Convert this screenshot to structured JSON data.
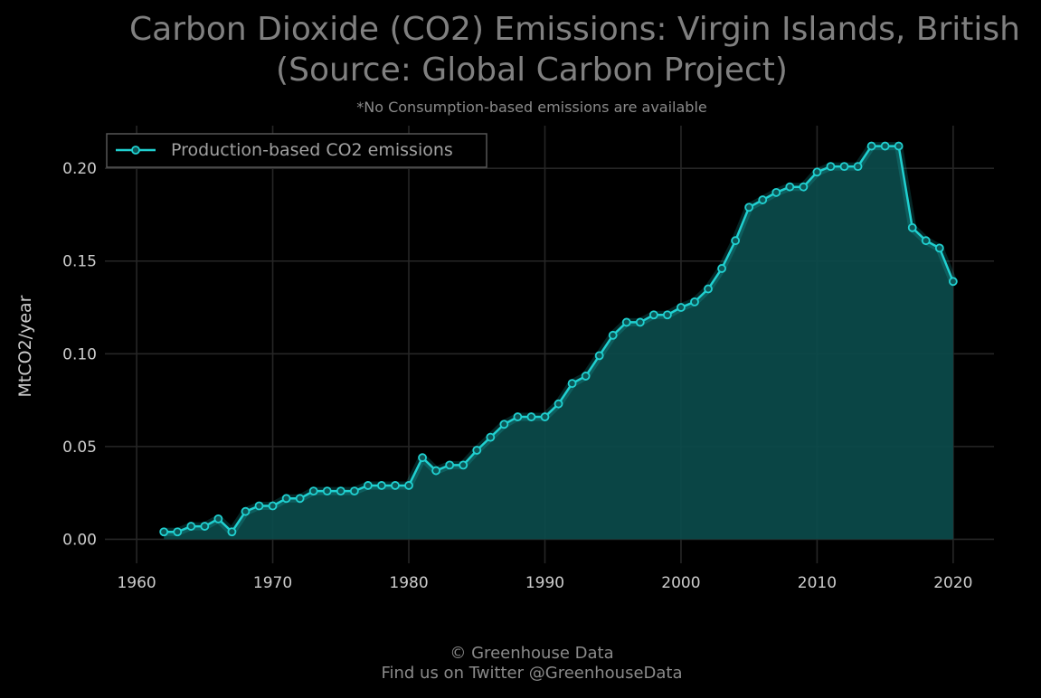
{
  "title_line1": "Carbon Dioxide (CO2) Emissions: Virgin Islands, British",
  "title_line2": "(Source: Global Carbon Project)",
  "subtitle": "*No Consumption-based emissions are available",
  "footer_line1": "© Greenhouse Data",
  "footer_line2": "Find us on Twitter @GreenhouseData",
  "colors": {
    "background": "#000000",
    "line": "#20d0d0",
    "fill": "#0b4d4d",
    "grid": "#262626",
    "text": "#cccccc"
  },
  "chart_data": {
    "type": "area",
    "ylabel": "MtCO2/year",
    "xlabel": "",
    "xlim": [
      1958,
      2023
    ],
    "ylim": [
      -0.011,
      0.223
    ],
    "xticks": [
      1960,
      1970,
      1980,
      1990,
      2000,
      2010,
      2020
    ],
    "xtick_labels": [
      "1960",
      "1970",
      "1980",
      "1990",
      "2000",
      "2010",
      "2020"
    ],
    "yticks": [
      0.0,
      0.05,
      0.1,
      0.15,
      0.2
    ],
    "ytick_labels": [
      "0.00",
      "0.05",
      "0.10",
      "0.15",
      "0.20"
    ],
    "grid": true,
    "legend": {
      "position": "top-left"
    },
    "series": [
      {
        "name": "Production-based CO2 emissions",
        "x": [
          1962,
          1963,
          1964,
          1965,
          1966,
          1967,
          1968,
          1969,
          1970,
          1971,
          1972,
          1973,
          1974,
          1975,
          1976,
          1977,
          1978,
          1979,
          1980,
          1981,
          1982,
          1983,
          1984,
          1985,
          1986,
          1987,
          1988,
          1989,
          1990,
          1991,
          1992,
          1993,
          1994,
          1995,
          1996,
          1997,
          1998,
          1999,
          2000,
          2001,
          2002,
          2003,
          2004,
          2005,
          2006,
          2007,
          2008,
          2009,
          2010,
          2011,
          2012,
          2013,
          2014,
          2015,
          2016,
          2017,
          2018,
          2019,
          2020
        ],
        "y": [
          0.004,
          0.004,
          0.007,
          0.007,
          0.011,
          0.004,
          0.015,
          0.018,
          0.018,
          0.022,
          0.022,
          0.026,
          0.026,
          0.026,
          0.026,
          0.029,
          0.029,
          0.029,
          0.029,
          0.044,
          0.037,
          0.04,
          0.04,
          0.048,
          0.055,
          0.062,
          0.066,
          0.066,
          0.066,
          0.073,
          0.084,
          0.088,
          0.099,
          0.11,
          0.117,
          0.117,
          0.121,
          0.121,
          0.125,
          0.128,
          0.135,
          0.146,
          0.161,
          0.179,
          0.183,
          0.187,
          0.19,
          0.19,
          0.198,
          0.201,
          0.201,
          0.201,
          0.212,
          0.212,
          0.212,
          0.168,
          0.161,
          0.157,
          0.139
        ]
      }
    ]
  }
}
